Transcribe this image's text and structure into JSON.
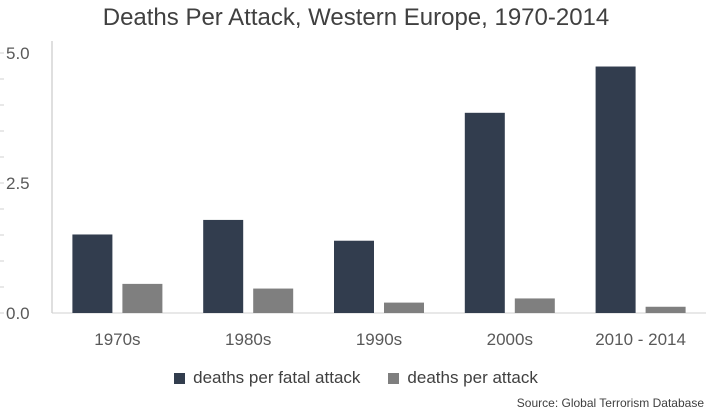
{
  "chart_data": {
    "type": "bar",
    "title": "Deaths Per Attack, Western Europe, 1970-2014",
    "categories": [
      "1970s",
      "1980s",
      "1990s",
      "2000s",
      "2010 - 2014"
    ],
    "series": [
      {
        "name": "deaths per fatal attack",
        "color": "#323D4E",
        "values": [
          1.51,
          1.79,
          1.39,
          3.85,
          4.74
        ]
      },
      {
        "name": "deaths per attack",
        "color": "#7F7F7F",
        "values": [
          0.56,
          0.47,
          0.2,
          0.28,
          0.12
        ]
      }
    ],
    "ylim": [
      0,
      5
    ],
    "yticks": [
      "0.0",
      "2.5",
      "5.0"
    ],
    "minor_tick_step": 0.5,
    "grid": false,
    "legend_position": "bottom",
    "xlabel": "",
    "ylabel": "",
    "source": "Source: Global Terrorism Database"
  }
}
